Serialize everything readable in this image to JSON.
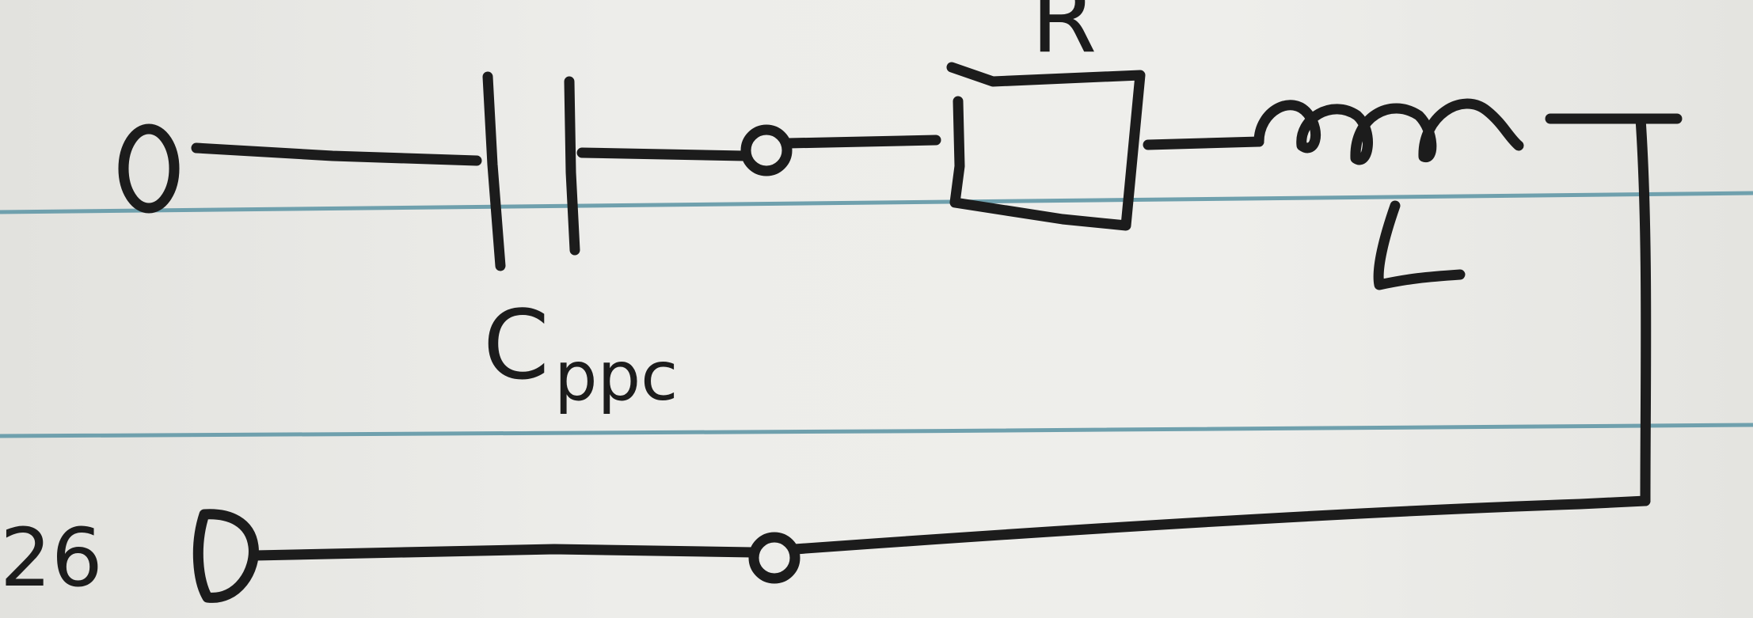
{
  "diagram": {
    "capacitor_label": "C",
    "capacitor_subscript": "ppc",
    "resistor_label": "R",
    "inductor_label": "L",
    "terminal_label": "26"
  },
  "colors": {
    "ink": "#1c1c1c",
    "paper": "#ececea",
    "rule_line": "#6fa0ad"
  }
}
